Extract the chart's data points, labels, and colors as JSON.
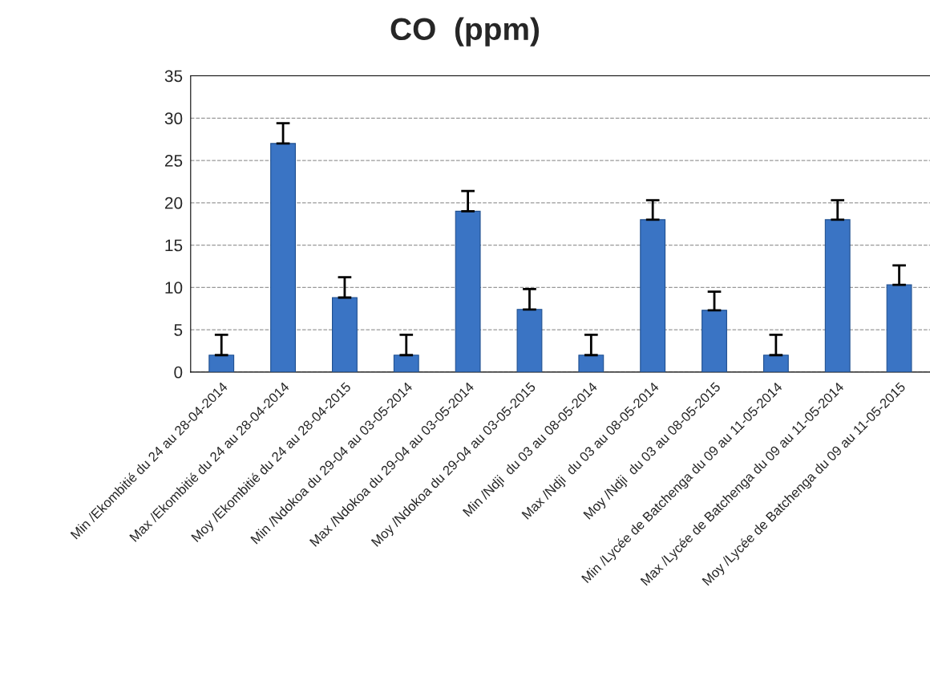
{
  "chart_data": {
    "type": "bar",
    "title": "CO  (ppm)",
    "categories": [
      "Min /Ekombitié du 24 au 28-04-2014",
      "Max /Ekombitié du 24 au 28-04-2014",
      "Moy /Ekombitié du 24 au 28-04-2015",
      "Min /Ndokoa du 29-04 au 03-05-2014",
      "Max /Ndokoa du 29-04 au 03-05-2014",
      "Moy /Ndokoa du 29-04 au 03-05-2015",
      "Min /Ndji  du 03 au 08-05-2014",
      "Max /Ndji  du 03 au 08-05-2014",
      "Moy /Ndji  du 03 au 08-05-2015",
      "Min /Lycée de Batchenga du 09 au 11-05-2014",
      "Max /Lycée de Batchenga du 09 au 11-05-2014",
      "Moy /Lycée de Batchenga du 09 au 11-05-2015"
    ],
    "values": [
      2,
      27,
      8.8,
      2,
      19,
      7.4,
      2,
      18,
      7.3,
      2,
      18,
      10.3
    ],
    "errors": [
      [
        2,
        4.4
      ],
      [
        27,
        29.4
      ],
      [
        8.8,
        11.2
      ],
      [
        2,
        4.4
      ],
      [
        19,
        21.4
      ],
      [
        7.4,
        9.8
      ],
      [
        2,
        4.4
      ],
      [
        18,
        20.3
      ],
      [
        7.3,
        9.5
      ],
      [
        2,
        4.4
      ],
      [
        18,
        20.3
      ],
      [
        10.3,
        12.6
      ]
    ],
    "color": "#3a74c4",
    "ylim": [
      0,
      35
    ],
    "yticks": [
      0,
      5,
      10,
      15,
      20,
      25,
      30,
      35
    ],
    "grid": "y"
  }
}
